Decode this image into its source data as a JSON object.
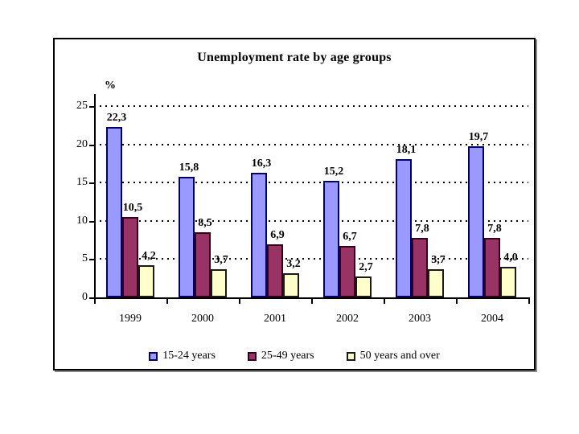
{
  "chart_data": {
    "type": "bar",
    "title": "Unemployment rate by age groups",
    "ylabel": "%",
    "xlabel": "",
    "categories": [
      "1999",
      "2000",
      "2001",
      "2002",
      "2003",
      "2004"
    ],
    "series": [
      {
        "name": "15-24 years",
        "fill": "#9999FF",
        "border": "#000066",
        "values": [
          22.3,
          15.8,
          16.3,
          15.2,
          18.1,
          19.7
        ],
        "value_labels": [
          "22,3",
          "15,8",
          "16,3",
          "15,2",
          "18,1",
          "19,7"
        ]
      },
      {
        "name": "25-49 years",
        "fill": "#993366",
        "border": "#33001a",
        "values": [
          10.5,
          8.5,
          6.9,
          6.7,
          7.8,
          7.8
        ],
        "value_labels": [
          "10,5",
          "8,5",
          "6,9",
          "6,7",
          "7,8",
          "7,8"
        ]
      },
      {
        "name": "50 years and over",
        "fill": "#FFFFCC",
        "border": "#1a1a1a",
        "values": [
          4.2,
          3.7,
          3.2,
          2.7,
          3.7,
          4.0
        ],
        "value_labels": [
          "4,2",
          "3,7",
          "3,2",
          "2,7",
          "3,7",
          "4,0"
        ]
      }
    ],
    "ylim": [
      0,
      25
    ],
    "yticks": [
      0,
      5,
      10,
      15,
      20,
      25
    ],
    "grid": "horizontal-dotted",
    "legend_position": "bottom",
    "decimal_separator": ","
  }
}
